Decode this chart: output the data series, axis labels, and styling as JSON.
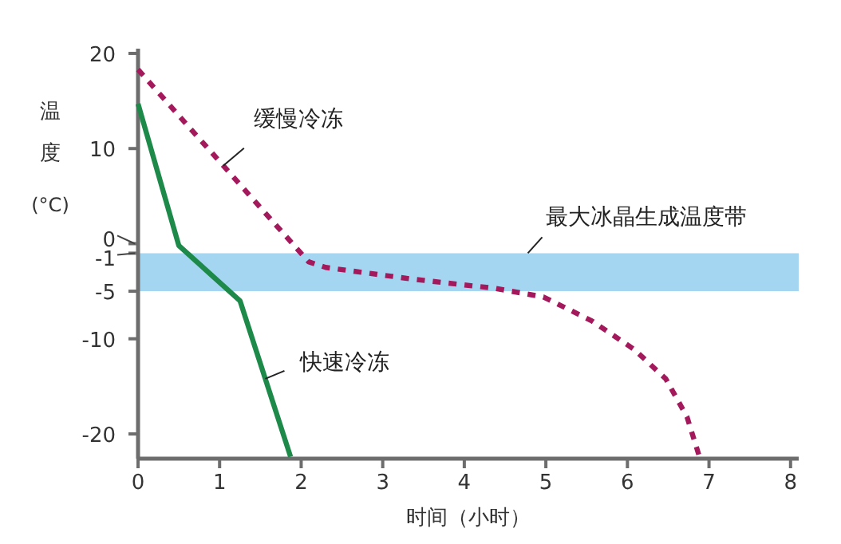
{
  "chart_data": {
    "type": "line",
    "xlabel": "时间（小时）",
    "ylabel": "温度 (°C)",
    "xlim": [
      0,
      8.1
    ],
    "ylim": [
      -22.6,
      20.5
    ],
    "xticks": [
      0,
      1,
      2,
      3,
      4,
      5,
      6,
      7,
      8
    ],
    "yticks": [
      20,
      10,
      0,
      -1,
      -5,
      -10,
      -20
    ],
    "grid": false,
    "series": [
      {
        "name": "缓慢冷冻",
        "color": "#a3195b",
        "line_style": "dashed",
        "x": [
          0,
          2.09,
          2.3,
          3.34,
          4.38,
          4.97,
          5.56,
          6.08,
          6.47,
          6.73,
          6.89
        ],
        "values": [
          18.3,
          -1.9,
          -2.5,
          -3.7,
          -4.7,
          -5.6,
          -8.1,
          -11.1,
          -14.2,
          -18.2,
          -22.6
        ]
      },
      {
        "name": "快速冷冻",
        "color": "#1e8a4a",
        "line_style": "solid",
        "x": [
          0,
          0.5,
          1.25,
          1.87
        ],
        "values": [
          14.7,
          -0.2,
          -6.0,
          -22.4
        ]
      }
    ],
    "bands": [
      {
        "axis": "y",
        "from": -5,
        "to": -1,
        "color": "#a5d6f1",
        "label": "最大冰晶生成温度带"
      }
    ]
  }
}
